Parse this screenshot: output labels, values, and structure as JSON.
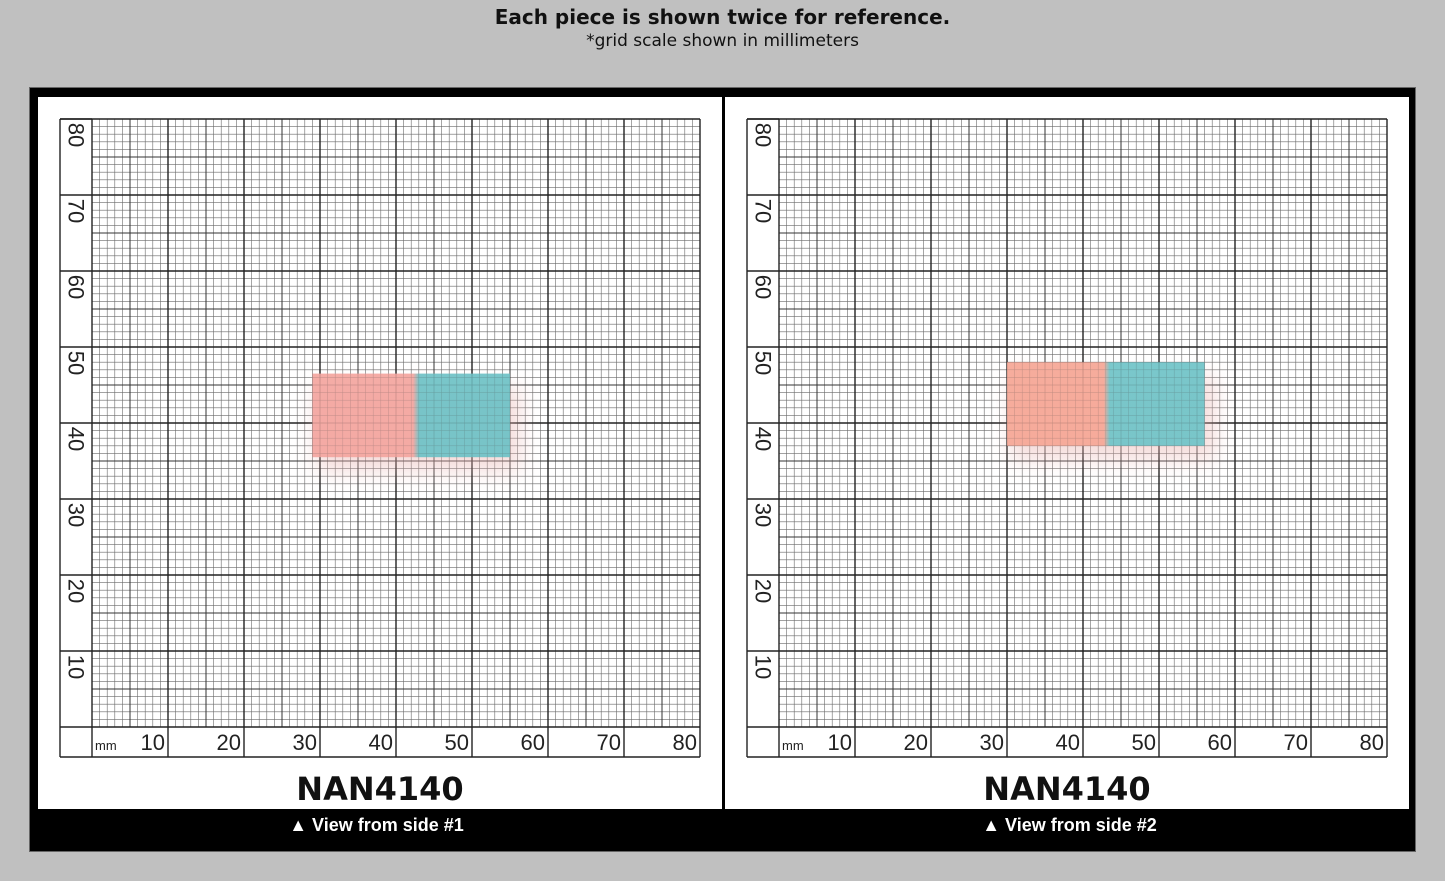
{
  "header": {
    "title": "Each piece is shown twice for reference.",
    "subtitle": "*grid scale shown in millimeters"
  },
  "grid": {
    "unit_label": "mm",
    "x_ticks": [
      "10",
      "20",
      "30",
      "40",
      "50",
      "60",
      "70",
      "80"
    ],
    "y_ticks": [
      "10",
      "20",
      "30",
      "40",
      "50",
      "60",
      "70",
      "80"
    ]
  },
  "panels": [
    {
      "piece_name": "NAN4140",
      "caption": "▲ View from side #1",
      "sample": {
        "x_range_mm": [
          29,
          55
        ],
        "y_range_mm": [
          35.5,
          46.5
        ],
        "split_mm": 42.5,
        "colors": {
          "left": "#f4a6a0",
          "right": "#6fc2c6"
        }
      }
    },
    {
      "piece_name": "NAN4140",
      "caption": "▲ View from side #2",
      "sample": {
        "x_range_mm": [
          30,
          56
        ],
        "y_range_mm": [
          37,
          48
        ],
        "split_mm": 43,
        "colors": {
          "left": "#f6a796",
          "right": "#70c4c8"
        }
      }
    }
  ]
}
